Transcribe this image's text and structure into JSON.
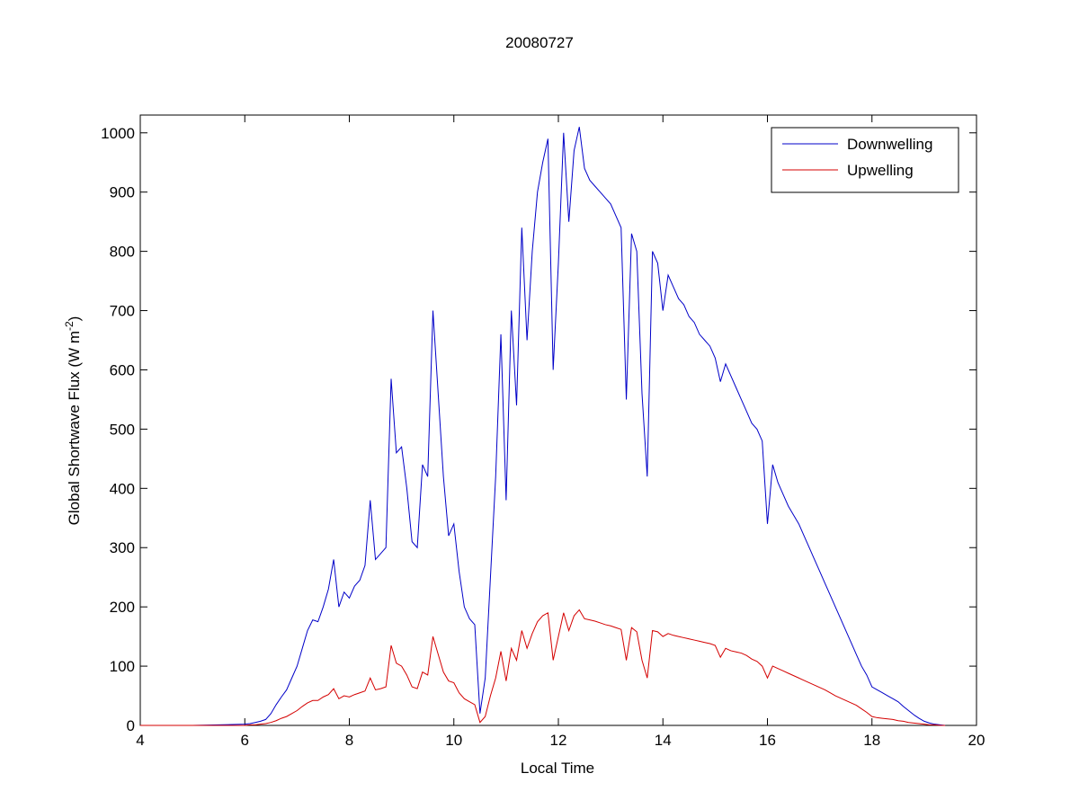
{
  "chart_data": {
    "type": "line",
    "title": "20080727",
    "xlabel": "Local Time",
    "ylabel": {
      "text": "Global Shortwave Flux (W m",
      "superscript": "-2",
      "suffix": ")"
    },
    "xlim": [
      4,
      20
    ],
    "xticks": [
      4,
      6,
      8,
      10,
      12,
      14,
      16,
      18,
      20
    ],
    "ylim": [
      0,
      1030
    ],
    "yticks": [
      0,
      100,
      200,
      300,
      400,
      500,
      600,
      700,
      800,
      900,
      1000
    ],
    "grid": false,
    "legend": "northeast",
    "x": [
      4,
      5,
      6.0,
      6.1,
      6.2,
      6.3,
      6.4,
      6.5,
      6.6,
      6.7,
      6.8,
      6.9,
      7.0,
      7.1,
      7.2,
      7.3,
      7.4,
      7.5,
      7.6,
      7.7,
      7.8,
      7.9,
      8.0,
      8.1,
      8.2,
      8.3,
      8.4,
      8.5,
      8.6,
      8.7,
      8.8,
      8.9,
      9.0,
      9.1,
      9.2,
      9.3,
      9.4,
      9.5,
      9.6,
      9.7,
      9.8,
      9.9,
      10.0,
      10.1,
      10.2,
      10.3,
      10.4,
      10.5,
      10.6,
      10.7,
      10.8,
      10.9,
      11.0,
      11.1,
      11.2,
      11.3,
      11.4,
      11.5,
      11.6,
      11.7,
      11.8,
      11.9,
      12.0,
      12.1,
      12.2,
      12.3,
      12.4,
      12.5,
      12.6,
      12.7,
      12.8,
      12.9,
      13.0,
      13.1,
      13.2,
      13.3,
      13.4,
      13.5,
      13.6,
      13.7,
      13.8,
      13.9,
      14.0,
      14.1,
      14.2,
      14.3,
      14.4,
      14.5,
      14.6,
      14.7,
      14.8,
      14.9,
      15.0,
      15.1,
      15.2,
      15.3,
      15.4,
      15.5,
      15.6,
      15.7,
      15.8,
      15.9,
      16.0,
      16.1,
      16.2,
      16.3,
      16.4,
      16.5,
      16.6,
      16.7,
      16.8,
      16.9,
      17.0,
      17.1,
      17.2,
      17.3,
      17.4,
      17.5,
      17.6,
      17.7,
      17.8,
      17.9,
      18.0,
      18.1,
      18.2,
      18.3,
      18.4,
      18.5,
      18.6,
      18.7,
      18.8,
      18.9,
      19.0,
      19.1,
      19.2,
      19.3,
      19.4
    ],
    "series": [
      {
        "name": "Downwelling",
        "color": "#0000c8",
        "values": [
          0,
          0,
          2,
          3,
          5,
          7,
          10,
          20,
          35,
          48,
          60,
          80,
          100,
          130,
          160,
          178,
          175,
          200,
          230,
          280,
          200,
          225,
          215,
          235,
          245,
          270,
          380,
          280,
          290,
          300,
          585,
          460,
          470,
          400,
          310,
          300,
          440,
          420,
          700,
          560,
          420,
          320,
          340,
          260,
          200,
          180,
          170,
          20,
          80,
          250,
          420,
          660,
          380,
          700,
          540,
          840,
          650,
          800,
          900,
          950,
          990,
          600,
          780,
          1000,
          850,
          970,
          1010,
          940,
          920,
          910,
          900,
          890,
          880,
          860,
          840,
          550,
          830,
          800,
          560,
          420,
          800,
          780,
          700,
          760,
          740,
          720,
          710,
          690,
          680,
          660,
          650,
          640,
          620,
          580,
          610,
          590,
          570,
          550,
          530,
          510,
          500,
          480,
          340,
          440,
          410,
          390,
          370,
          355,
          340,
          320,
          300,
          280,
          260,
          240,
          220,
          200,
          180,
          160,
          140,
          120,
          100,
          85,
          65,
          60,
          55,
          50,
          45,
          40,
          32,
          25,
          18,
          12,
          7,
          4,
          2,
          1,
          0
        ]
      },
      {
        "name": "Upwelling",
        "color": "#d40000",
        "values": [
          0,
          0,
          0,
          1,
          1,
          2,
          3,
          5,
          8,
          12,
          15,
          20,
          25,
          32,
          38,
          42,
          42,
          48,
          52,
          62,
          45,
          50,
          48,
          52,
          55,
          58,
          80,
          60,
          62,
          65,
          135,
          105,
          100,
          85,
          65,
          62,
          90,
          85,
          150,
          120,
          90,
          75,
          72,
          55,
          45,
          40,
          35,
          5,
          15,
          50,
          80,
          125,
          75,
          130,
          110,
          160,
          130,
          155,
          175,
          185,
          190,
          110,
          150,
          190,
          160,
          185,
          195,
          180,
          178,
          176,
          173,
          170,
          168,
          165,
          162,
          110,
          165,
          158,
          110,
          80,
          160,
          158,
          150,
          155,
          152,
          150,
          148,
          146,
          144,
          142,
          140,
          138,
          135,
          115,
          130,
          126,
          124,
          122,
          118,
          112,
          108,
          100,
          80,
          100,
          96,
          92,
          88,
          84,
          80,
          76,
          72,
          68,
          64,
          60,
          55,
          50,
          46,
          42,
          38,
          34,
          28,
          22,
          15,
          13,
          12,
          11,
          10,
          8,
          7,
          5,
          4,
          3,
          2,
          1,
          1,
          0,
          0
        ]
      }
    ]
  }
}
